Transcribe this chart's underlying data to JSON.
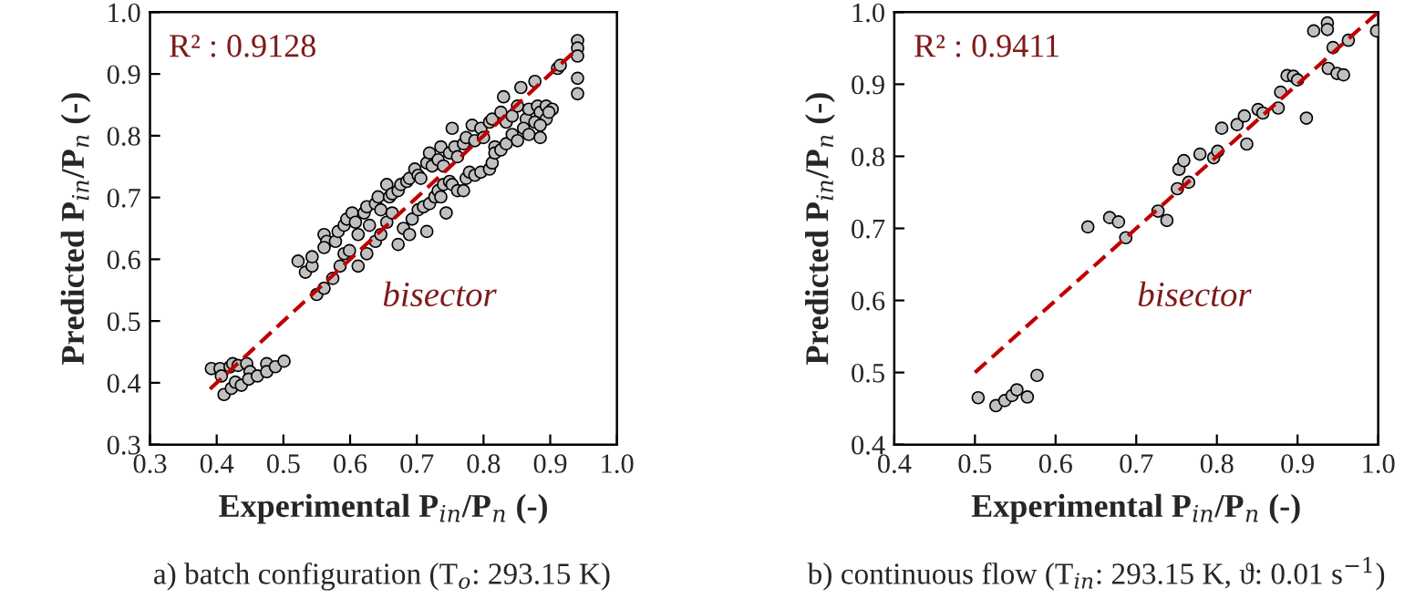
{
  "chart_data": [
    {
      "type": "scatter",
      "xlabel": "Experimental P$_{in}$/P$_{n}$ (-)",
      "ylabel": "Predicted P$_{in}$/P$_{n}$ (-)",
      "annotations": [
        "R² : 0.9128",
        "bisector",
        "a) batch configuration (T$_{o}$: 293.15 K)"
      ],
      "xlim": [
        0.3,
        1.0
      ],
      "ylim": [
        0.3,
        1.0
      ],
      "xticks": [
        {
          "value": 0.3,
          "label": "0.3"
        },
        {
          "value": 0.4,
          "label": "0.4"
        },
        {
          "value": 0.5,
          "label": "0.5"
        },
        {
          "value": 0.6,
          "label": "0.6"
        },
        {
          "value": 0.7,
          "label": "0.7"
        },
        {
          "value": 0.8,
          "label": "0.8"
        },
        {
          "value": 0.9,
          "label": "0.9"
        },
        {
          "value": 1.0,
          "label": "1.0"
        }
      ],
      "yticks": [
        {
          "value": 0.3,
          "label": "0.3"
        },
        {
          "value": 0.4,
          "label": "0.4"
        },
        {
          "value": 0.5,
          "label": "0.5"
        },
        {
          "value": 0.6,
          "label": "0.6"
        },
        {
          "value": 0.7,
          "label": "0.7"
        },
        {
          "value": 0.8,
          "label": "0.8"
        },
        {
          "value": 0.9,
          "label": "0.9"
        },
        {
          "value": 1.0,
          "label": "1.0"
        }
      ],
      "grid": false,
      "legend": false,
      "series": [
        {
          "marker": "circle",
          "color": "#c0c0c0",
          "x": [
            0.392,
            0.405,
            0.407,
            0.42,
            0.424,
            0.432,
            0.445,
            0.45,
            0.411,
            0.422,
            0.428,
            0.437,
            0.448,
            0.461,
            0.475,
            0.475,
            0.488,
            0.501,
            0.522,
            0.533,
            0.543,
            0.543,
            0.561,
            0.565,
            0.561,
            0.578,
            0.582,
            0.591,
            0.595,
            0.603,
            0.608,
            0.612,
            0.621,
            0.625,
            0.629,
            0.638,
            0.642,
            0.646,
            0.655,
            0.659,
            0.663,
            0.672,
            0.676,
            0.685,
            0.689,
            0.697,
            0.702,
            0.706,
            0.715,
            0.719,
            0.723,
            0.732,
            0.736,
            0.74,
            0.749,
            0.753,
            0.757,
            0.761,
            0.77,
            0.774,
            0.783,
            0.787,
            0.796,
            0.8,
            0.809,
            0.813,
            0.817,
            0.826,
            0.83,
            0.834,
            0.843,
            0.851,
            0.856,
            0.864,
            0.868,
            0.877,
            0.881,
            0.885,
            0.894,
            0.903,
            0.911,
            0.915,
            0.941,
            0.941,
            0.941,
            0.941,
            0.941,
            0.55,
            0.561,
            0.574,
            0.585,
            0.591,
            0.599,
            0.612,
            0.625,
            0.638,
            0.646,
            0.655,
            0.663,
            0.672,
            0.68,
            0.689,
            0.693,
            0.702,
            0.71,
            0.715,
            0.719,
            0.727,
            0.732,
            0.736,
            0.74,
            0.744,
            0.749,
            0.753,
            0.761,
            0.77,
            0.774,
            0.779,
            0.787,
            0.796,
            0.809,
            0.813,
            0.817,
            0.826,
            0.834,
            0.843,
            0.851,
            0.86,
            0.868,
            0.877,
            0.885,
            0.894,
            0.898,
            0.885
          ],
          "values": [
            0.423,
            0.423,
            0.411,
            0.426,
            0.431,
            0.428,
            0.431,
            0.418,
            0.381,
            0.391,
            0.401,
            0.396,
            0.406,
            0.411,
            0.431,
            0.418,
            0.426,
            0.435,
            0.597,
            0.579,
            0.589,
            0.604,
            0.64,
            0.629,
            0.619,
            0.629,
            0.645,
            0.655,
            0.665,
            0.675,
            0.66,
            0.64,
            0.675,
            0.685,
            0.655,
            0.69,
            0.701,
            0.68,
            0.721,
            0.701,
            0.706,
            0.711,
            0.721,
            0.726,
            0.731,
            0.746,
            0.736,
            0.731,
            0.756,
            0.772,
            0.751,
            0.761,
            0.782,
            0.751,
            0.772,
            0.812,
            0.782,
            0.766,
            0.787,
            0.797,
            0.817,
            0.792,
            0.812,
            0.797,
            0.822,
            0.827,
            0.782,
            0.838,
            0.863,
            0.822,
            0.832,
            0.848,
            0.878,
            0.827,
            0.843,
            0.888,
            0.848,
            0.838,
            0.848,
            0.843,
            0.909,
            0.914,
            0.954,
            0.942,
            0.929,
            0.893,
            0.868,
            0.543,
            0.553,
            0.569,
            0.589,
            0.609,
            0.614,
            0.589,
            0.609,
            0.629,
            0.64,
            0.66,
            0.675,
            0.624,
            0.65,
            0.64,
            0.665,
            0.68,
            0.685,
            0.645,
            0.69,
            0.701,
            0.711,
            0.701,
            0.721,
            0.675,
            0.726,
            0.721,
            0.711,
            0.711,
            0.731,
            0.741,
            0.736,
            0.741,
            0.746,
            0.756,
            0.772,
            0.777,
            0.787,
            0.802,
            0.792,
            0.812,
            0.802,
            0.822,
            0.797,
            0.827,
            0.838,
            0.817
          ]
        },
        {
          "type": "line",
          "color": "#c00000",
          "line_style": "dashed",
          "x": [
            0.39,
            0.94
          ],
          "values": [
            0.39,
            0.94
          ]
        }
      ]
    },
    {
      "type": "scatter",
      "xlabel": "Experimental P$_{in}$/P$_{n}$ (-)",
      "ylabel": "Predicted P$_{in}$/P$_{n}$ (-)",
      "annotations": [
        "R² : 0.9411",
        "bisector",
        "b) continuous flow (T$_{in}$: 293.15 K, ϑ: 0.01 s$^{−1}$)"
      ],
      "xlim": [
        0.4,
        1.0
      ],
      "ylim": [
        0.4,
        1.0
      ],
      "xticks": [
        {
          "value": 0.4,
          "label": "0.4"
        },
        {
          "value": 0.5,
          "label": "0.5"
        },
        {
          "value": 0.6,
          "label": "0.6"
        },
        {
          "value": 0.7,
          "label": "0.7"
        },
        {
          "value": 0.8,
          "label": "0.8"
        },
        {
          "value": 0.9,
          "label": "0.9"
        },
        {
          "value": 1.0,
          "label": "1.0"
        }
      ],
      "yticks": [
        {
          "value": 0.4,
          "label": "0.4"
        },
        {
          "value": 0.5,
          "label": "0.5"
        },
        {
          "value": 0.6,
          "label": "0.6"
        },
        {
          "value": 0.7,
          "label": "0.7"
        },
        {
          "value": 0.8,
          "label": "0.8"
        },
        {
          "value": 0.9,
          "label": "0.9"
        },
        {
          "value": 1.0,
          "label": "1.0"
        }
      ],
      "grid": false,
      "legend": false,
      "series": [
        {
          "marker": "circle",
          "color": "#c0c0c0",
          "x": [
            0.504,
            0.526,
            0.537,
            0.546,
            0.552,
            0.565,
            0.577,
            0.64,
            0.667,
            0.678,
            0.687,
            0.727,
            0.738,
            0.751,
            0.753,
            0.759,
            0.765,
            0.779,
            0.796,
            0.801,
            0.806,
            0.825,
            0.834,
            0.837,
            0.851,
            0.857,
            0.876,
            0.879,
            0.887,
            0.895,
            0.9,
            0.911,
            0.92,
            0.937,
            0.937,
            0.938,
            0.944,
            0.949,
            0.957,
            0.963,
            0.998
          ],
          "values": [
            0.465,
            0.454,
            0.461,
            0.468,
            0.476,
            0.466,
            0.496,
            0.702,
            0.715,
            0.709,
            0.687,
            0.724,
            0.711,
            0.755,
            0.782,
            0.794,
            0.764,
            0.803,
            0.798,
            0.807,
            0.839,
            0.844,
            0.856,
            0.817,
            0.865,
            0.86,
            0.867,
            0.889,
            0.912,
            0.911,
            0.906,
            0.853,
            0.974,
            0.985,
            0.976,
            0.922,
            0.951,
            0.915,
            0.913,
            0.961,
            0.974
          ]
        },
        {
          "type": "line",
          "color": "#c00000",
          "line_style": "dashed",
          "x": [
            0.5,
            1.0
          ],
          "values": [
            0.5,
            1.0
          ]
        }
      ]
    }
  ]
}
